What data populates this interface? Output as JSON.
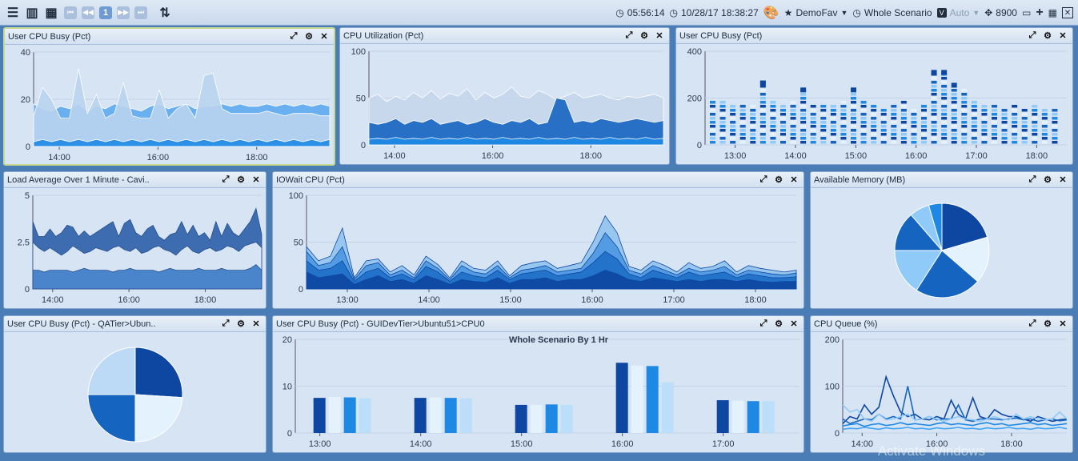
{
  "toolbar": {
    "time": "05:56:14",
    "datetime": "10/28/17 18:38:27",
    "favorite": "DemoFav",
    "scenario": "Whole Scenario",
    "auto": "Auto",
    "port": "8900",
    "page": "1"
  },
  "panels": {
    "p1": {
      "title": "User CPU Busy (Pct)"
    },
    "p2": {
      "title": "CPU Utilization (Pct)"
    },
    "p3": {
      "title": "User CPU Busy (Pct)"
    },
    "p4": {
      "title": "Load Average Over 1 Minute - Cavi.."
    },
    "p5": {
      "title": "IOWait CPU (Pct)"
    },
    "p6": {
      "title": "Available Memory (MB)"
    },
    "p7": {
      "title": "User CPU Busy (Pct) - QATier>Ubun.."
    },
    "p8": {
      "title": "User CPU Busy (Pct) - GUIDevTier>Ubuntu51>CPU0"
    },
    "p9": {
      "title": "CPU Queue (%)"
    }
  },
  "colors": {
    "dark": "#0d47a1",
    "mid": "#1565c0",
    "blue": "#1e88e5",
    "light": "#90caf9",
    "pale": "#e3f2fd"
  },
  "chart_data": [
    {
      "id": "p1",
      "type": "area",
      "ylim": [
        0,
        40
      ],
      "yticks": [
        0,
        20,
        40
      ],
      "xticks": [
        "14:00",
        "16:00",
        "18:00"
      ],
      "x": [
        0,
        1,
        2,
        3,
        4,
        5,
        6,
        7,
        8,
        9,
        10,
        11,
        12,
        13,
        14,
        15,
        16,
        17,
        18,
        19,
        20,
        21,
        22,
        23,
        24,
        25,
        26,
        27,
        28,
        29,
        30,
        31,
        32,
        33
      ],
      "series": [
        {
          "values": [
            8,
            7,
            7,
            8,
            7,
            8,
            7,
            8,
            8,
            7,
            8,
            7,
            7,
            8,
            7,
            8,
            8,
            7,
            8,
            8,
            8,
            8,
            8,
            7,
            8,
            8,
            8,
            8,
            8,
            8,
            8,
            8,
            8,
            8
          ]
        },
        {
          "values": [
            18,
            16,
            15,
            17,
            16,
            18,
            15,
            17,
            16,
            18,
            17,
            16,
            15,
            17,
            18,
            16,
            17,
            18,
            16,
            17,
            17,
            18,
            17,
            18,
            17,
            17,
            18,
            17,
            18,
            17,
            18,
            17,
            18,
            17
          ]
        },
        {
          "values": [
            13,
            25,
            20,
            12,
            12,
            33,
            14,
            22,
            12,
            14,
            27,
            13,
            12,
            12,
            24,
            12,
            16,
            18,
            12,
            30,
            31,
            16,
            14,
            14,
            14,
            14,
            15,
            14,
            13,
            14,
            14,
            14,
            13,
            13
          ]
        },
        {
          "values": [
            2,
            3,
            2,
            3,
            2,
            3,
            2,
            3,
            2,
            3,
            2,
            3,
            2,
            3,
            2,
            3,
            2,
            3,
            2,
            3,
            2,
            3,
            2,
            3,
            2,
            3,
            2,
            3,
            2,
            3,
            2,
            3,
            2,
            3
          ]
        }
      ]
    },
    {
      "id": "p2",
      "type": "area",
      "ylim": [
        0,
        100
      ],
      "yticks": [
        0,
        50,
        100
      ],
      "xticks": [
        "14:00",
        "16:00",
        "18:00"
      ],
      "x": [
        0,
        1,
        2,
        3,
        4,
        5,
        6,
        7,
        8,
        9,
        10,
        11,
        12,
        13,
        14,
        15,
        16,
        17,
        18,
        19,
        20,
        21,
        22,
        23,
        24,
        25,
        26,
        27,
        28,
        29,
        30,
        31,
        32,
        33
      ],
      "series": [
        {
          "values": [
            50,
            54,
            46,
            52,
            48,
            56,
            50,
            58,
            49,
            55,
            52,
            60,
            48,
            56,
            50,
            54,
            62,
            52,
            50,
            58,
            54,
            48,
            52,
            56,
            50,
            52,
            54,
            50,
            48,
            52,
            50,
            52,
            54,
            50
          ]
        },
        {
          "values": [
            24,
            22,
            24,
            28,
            22,
            26,
            24,
            28,
            22,
            24,
            26,
            22,
            24,
            28,
            24,
            22,
            26,
            24,
            28,
            22,
            24,
            50,
            48,
            24,
            26,
            24,
            28,
            26,
            24,
            26,
            28,
            26,
            24,
            26
          ]
        },
        {
          "values": [
            6,
            7,
            6,
            8,
            6,
            7,
            6,
            8,
            6,
            7,
            6,
            8,
            6,
            7,
            6,
            8,
            6,
            7,
            6,
            8,
            6,
            7,
            6,
            8,
            6,
            7,
            6,
            8,
            6,
            7,
            6,
            8,
            6,
            7
          ]
        }
      ]
    },
    {
      "id": "p3",
      "type": "bar",
      "ylim": [
        0,
        400
      ],
      "yticks": [
        0,
        200,
        400
      ],
      "xticks": [
        "13:00",
        "14:00",
        "15:00",
        "16:00",
        "17:00",
        "18:00"
      ],
      "values": [
        190,
        200,
        185,
        185,
        180,
        275,
        195,
        180,
        200,
        245,
        185,
        180,
        175,
        190,
        245,
        190,
        175,
        170,
        180,
        195,
        170,
        175,
        320,
        320,
        265,
        240,
        195,
        180,
        175,
        170,
        175,
        170,
        175,
        170,
        170
      ]
    },
    {
      "id": "p4",
      "type": "area",
      "ylim": [
        0,
        5
      ],
      "yticks": [
        0,
        2.5,
        5
      ],
      "xticks": [
        "14:00",
        "16:00",
        "18:00"
      ],
      "x": [
        0,
        1,
        2,
        3,
        4,
        5,
        6,
        7,
        8,
        9,
        10,
        11,
        12,
        13,
        14,
        15,
        16,
        17,
        18,
        19,
        20,
        21,
        22,
        23,
        24,
        25,
        26,
        27,
        28,
        29,
        30,
        31,
        32,
        33,
        34,
        35,
        36,
        37,
        38,
        39,
        40
      ],
      "series": [
        {
          "values": [
            3.6,
            2.8,
            2.8,
            3.2,
            2.8,
            3.0,
            3.4,
            3.3,
            2.8,
            3.1,
            2.8,
            3.0,
            3.2,
            3.4,
            3.6,
            2.8,
            3.5,
            3.7,
            3.0,
            2.8,
            3.2,
            3.4,
            2.8,
            2.6,
            2.9,
            3.0,
            3.6,
            2.9,
            3.4,
            2.8,
            3.0,
            2.6,
            3.6,
            2.8,
            3.5,
            3.0,
            2.8,
            3.2,
            3.6,
            4.3,
            2.9
          ]
        },
        {
          "values": [
            2.5,
            2.2,
            2.0,
            2.2,
            2.0,
            1.8,
            2.0,
            2.3,
            2.1,
            1.9,
            2.0,
            2.2,
            2.1,
            2.0,
            2.2,
            2.3,
            2.1,
            2.0,
            2.2,
            1.9,
            2.0,
            2.2,
            2.3,
            2.1,
            2.0,
            1.8,
            2.1,
            2.3,
            2.0,
            1.9,
            2.1,
            2.2,
            2.0,
            2.1,
            2.3,
            2.2,
            2.0,
            2.3,
            2.4,
            2.5,
            2.2
          ]
        },
        {
          "values": [
            1.0,
            1.0,
            0.9,
            1.0,
            1.0,
            1.0,
            1.0,
            0.9,
            1.0,
            1.1,
            1.0,
            1.0,
            1.0,
            1.0,
            0.9,
            1.0,
            1.0,
            1.1,
            1.0,
            1.0,
            1.0,
            1.0,
            0.9,
            1.0,
            1.1,
            1.0,
            1.0,
            1.0,
            1.0,
            1.1,
            1.0,
            1.0,
            1.0,
            1.1,
            1.0,
            1.0,
            1.0,
            1.0,
            1.1,
            1.3,
            1.0
          ]
        }
      ]
    },
    {
      "id": "p5",
      "type": "area",
      "ylim": [
        0,
        100
      ],
      "yticks": [
        0,
        50,
        100
      ],
      "xticks": [
        "13:00",
        "14:00",
        "15:00",
        "16:00",
        "17:00",
        "18:00"
      ],
      "x": [
        0,
        1,
        2,
        3,
        4,
        5,
        6,
        7,
        8,
        9,
        10,
        11,
        12,
        13,
        14,
        15,
        16,
        17,
        18,
        19,
        20,
        21,
        22,
        23,
        24,
        25,
        26,
        27,
        28,
        29,
        30,
        31,
        32,
        33,
        34,
        35,
        36,
        37,
        38,
        39,
        40,
        41
      ],
      "series": [
        {
          "values": [
            45,
            30,
            35,
            65,
            12,
            30,
            32,
            18,
            25,
            15,
            35,
            26,
            12,
            30,
            22,
            20,
            30,
            14,
            25,
            28,
            30,
            22,
            25,
            28,
            50,
            78,
            60,
            24,
            20,
            30,
            25,
            18,
            28,
            22,
            24,
            30,
            18,
            25,
            22,
            20,
            18,
            20
          ]
        },
        {
          "values": [
            40,
            25,
            28,
            45,
            10,
            25,
            28,
            15,
            20,
            12,
            30,
            22,
            10,
            25,
            18,
            16,
            25,
            12,
            20,
            22,
            25,
            18,
            20,
            22,
            38,
            60,
            45,
            20,
            16,
            25,
            20,
            15,
            22,
            18,
            20,
            24,
            15,
            20,
            18,
            16,
            15,
            17
          ]
        },
        {
          "values": [
            30,
            20,
            22,
            30,
            8,
            18,
            22,
            12,
            16,
            10,
            24,
            18,
            8,
            18,
            14,
            12,
            20,
            10,
            16,
            18,
            20,
            14,
            16,
            18,
            28,
            40,
            32,
            16,
            12,
            20,
            16,
            12,
            18,
            14,
            16,
            18,
            12,
            16,
            14,
            12,
            12,
            13
          ]
        },
        {
          "values": [
            18,
            12,
            14,
            16,
            5,
            10,
            14,
            8,
            10,
            6,
            14,
            10,
            5,
            10,
            8,
            7,
            12,
            6,
            10,
            10,
            12,
            8,
            10,
            10,
            14,
            20,
            16,
            10,
            8,
            12,
            10,
            8,
            10,
            8,
            10,
            10,
            8,
            10,
            8,
            7,
            8,
            8
          ]
        }
      ]
    },
    {
      "id": "p6",
      "type": "pie",
      "values": [
        18,
        14,
        20,
        14,
        12,
        6,
        4
      ]
    },
    {
      "id": "p7",
      "type": "pie",
      "values": [
        26,
        24,
        25,
        25
      ]
    },
    {
      "id": "p8",
      "type": "bar",
      "title": "Whole Scenario By 1 Hr",
      "ylim": [
        0,
        20
      ],
      "yticks": [
        0,
        10,
        20
      ],
      "categories": [
        "13:00",
        "14:00",
        "15:00",
        "16:00",
        "17:00"
      ],
      "series": [
        {
          "values": [
            7.5,
            7.5,
            6.0,
            15.0,
            7.0
          ]
        },
        {
          "values": [
            7.7,
            7.6,
            6.0,
            14.4,
            6.9
          ]
        },
        {
          "values": [
            7.6,
            7.5,
            6.1,
            14.3,
            6.8
          ]
        },
        {
          "values": [
            7.4,
            7.4,
            6.0,
            10.8,
            6.8
          ]
        }
      ]
    },
    {
      "id": "p9",
      "type": "line",
      "ylim": [
        0,
        200
      ],
      "yticks": [
        0,
        100,
        200
      ],
      "xticks": [
        "14:00",
        "16:00",
        "18:00"
      ],
      "x": [
        0,
        1,
        2,
        3,
        4,
        5,
        6,
        7,
        8,
        9,
        10,
        11,
        12,
        13,
        14,
        15,
        16,
        17,
        18,
        19,
        20,
        21,
        22,
        23,
        24,
        25,
        26,
        27,
        28,
        29,
        30,
        31
      ],
      "series": [
        {
          "values": [
            20,
            35,
            30,
            60,
            40,
            55,
            120,
            80,
            45,
            35,
            40,
            30,
            28,
            35,
            30,
            70,
            40,
            30,
            75,
            35,
            30,
            50,
            40,
            35,
            35,
            30,
            25,
            35,
            30,
            25,
            28,
            30
          ]
        },
        {
          "values": [
            30,
            20,
            25,
            30,
            28,
            40,
            30,
            35,
            30,
            100,
            28,
            30,
            35,
            28,
            30,
            30,
            60,
            28,
            25,
            30,
            30,
            30,
            28,
            30,
            32,
            28,
            30,
            25,
            28,
            30,
            26,
            28
          ]
        },
        {
          "values": [
            15,
            18,
            20,
            14,
            18,
            20,
            16,
            18,
            22,
            18,
            20,
            18,
            16,
            20,
            22,
            18,
            20,
            18,
            16,
            20,
            22,
            18,
            20,
            16,
            18,
            20,
            22,
            18,
            20,
            16,
            18,
            20
          ]
        },
        {
          "values": [
            60,
            45,
            50,
            30,
            25,
            40,
            28,
            30,
            35,
            40,
            28,
            30,
            35,
            30,
            25,
            30,
            35,
            30,
            28,
            25,
            30,
            35,
            30,
            28,
            40,
            30,
            35,
            30,
            28,
            30,
            45,
            30
          ]
        },
        {
          "values": [
            8,
            10,
            9,
            12,
            10,
            8,
            11,
            9,
            10,
            12,
            9,
            10,
            8,
            11,
            9,
            10,
            12,
            9,
            10,
            8,
            11,
            9,
            10,
            12,
            9,
            10,
            8,
            11,
            9,
            10,
            12,
            9
          ]
        }
      ]
    }
  ],
  "watermark": "Activate Windows"
}
